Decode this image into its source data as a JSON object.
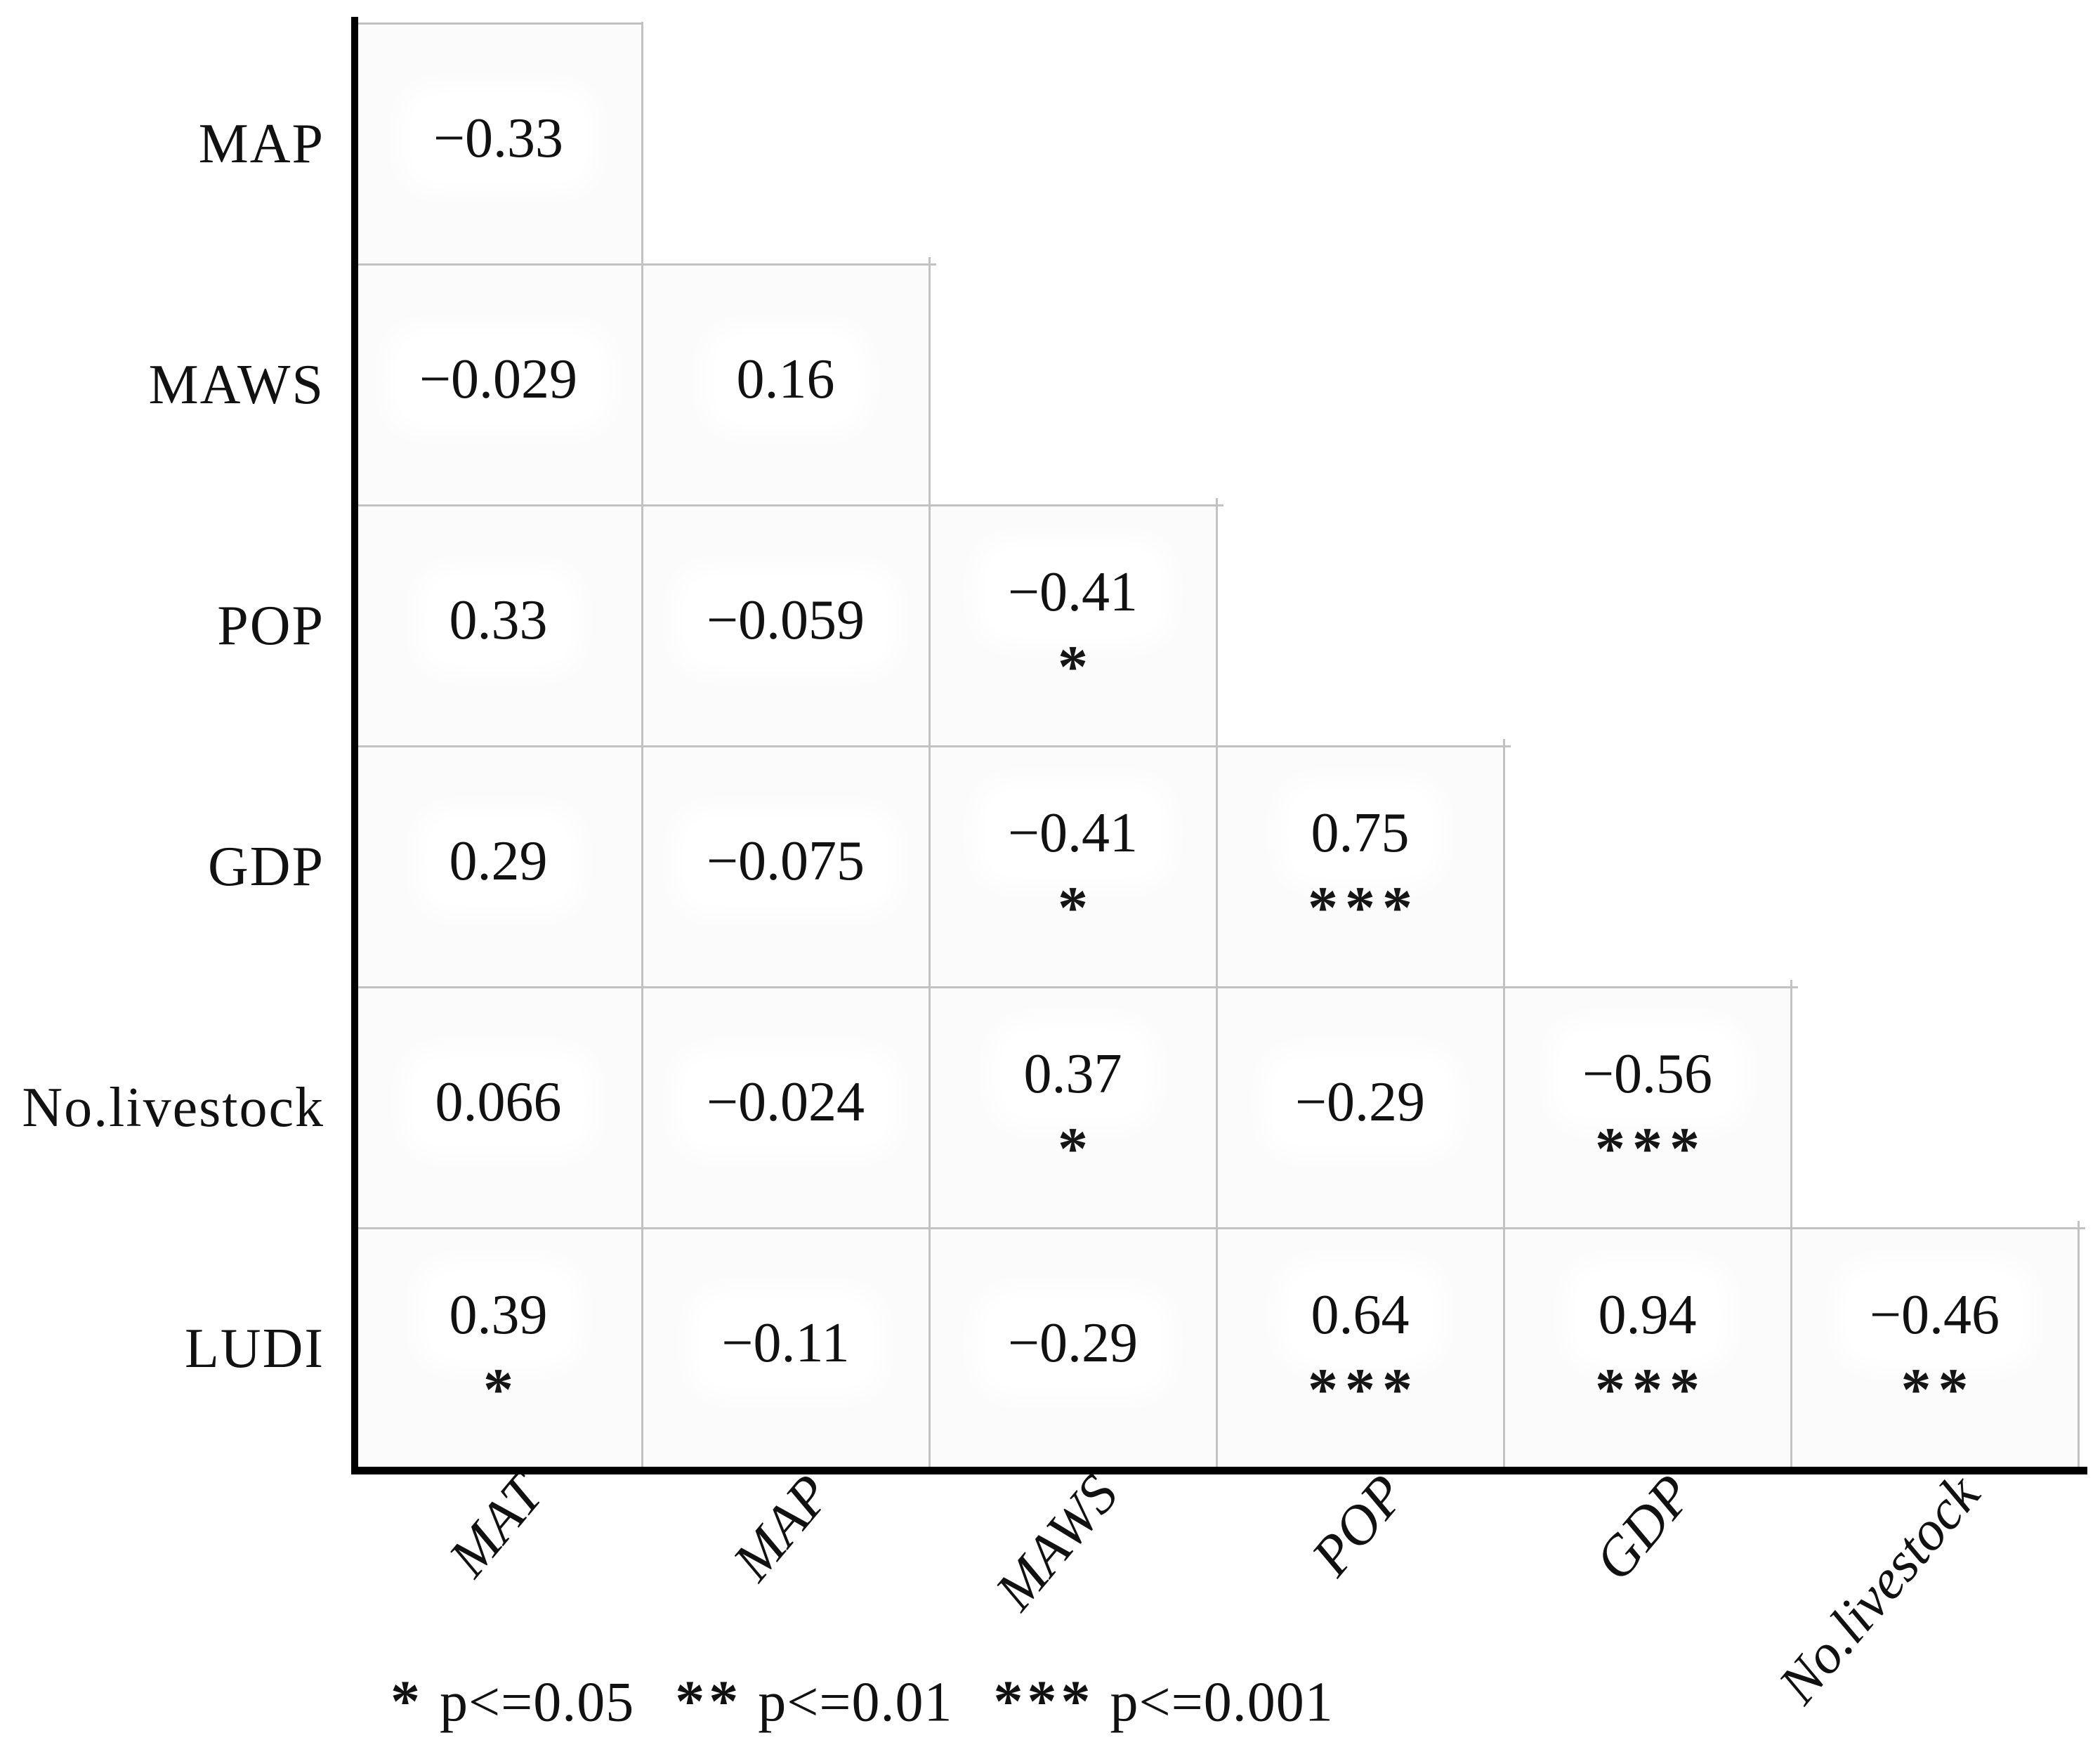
{
  "chart_data": {
    "type": "heatmap",
    "subtype": "lower-triangle correlation matrix",
    "title": "",
    "rows": [
      "MAP",
      "MAWS",
      "POP",
      "GDP",
      "No.livestock",
      "LUDI"
    ],
    "columns": [
      "MAT",
      "MAP",
      "MAWS",
      "POP",
      "GDP",
      "No.livestock"
    ],
    "matrix": [
      {
        "row": "MAP",
        "cells": [
          {
            "col": "MAT",
            "r": -0.33,
            "sig": ""
          }
        ]
      },
      {
        "row": "MAWS",
        "cells": [
          {
            "col": "MAT",
            "r": -0.029,
            "sig": ""
          },
          {
            "col": "MAP",
            "r": 0.16,
            "sig": ""
          }
        ]
      },
      {
        "row": "POP",
        "cells": [
          {
            "col": "MAT",
            "r": 0.33,
            "sig": ""
          },
          {
            "col": "MAP",
            "r": -0.059,
            "sig": ""
          },
          {
            "col": "MAWS",
            "r": -0.41,
            "sig": "*"
          }
        ]
      },
      {
        "row": "GDP",
        "cells": [
          {
            "col": "MAT",
            "r": 0.29,
            "sig": ""
          },
          {
            "col": "MAP",
            "r": -0.075,
            "sig": ""
          },
          {
            "col": "MAWS",
            "r": -0.41,
            "sig": "*"
          },
          {
            "col": "POP",
            "r": 0.75,
            "sig": "***"
          }
        ]
      },
      {
        "row": "No.livestock",
        "cells": [
          {
            "col": "MAT",
            "r": 0.066,
            "sig": ""
          },
          {
            "col": "MAP",
            "r": -0.024,
            "sig": ""
          },
          {
            "col": "MAWS",
            "r": 0.37,
            "sig": "*"
          },
          {
            "col": "POP",
            "r": -0.29,
            "sig": ""
          },
          {
            "col": "GDP",
            "r": -0.56,
            "sig": "***"
          }
        ]
      },
      {
        "row": "LUDI",
        "cells": [
          {
            "col": "MAT",
            "r": 0.39,
            "sig": "*"
          },
          {
            "col": "MAP",
            "r": -0.11,
            "sig": ""
          },
          {
            "col": "MAWS",
            "r": -0.29,
            "sig": ""
          },
          {
            "col": "POP",
            "r": 0.64,
            "sig": "***"
          },
          {
            "col": "GDP",
            "r": 0.94,
            "sig": "***"
          },
          {
            "col": "No.livestock",
            "r": -0.46,
            "sig": "**"
          }
        ]
      }
    ],
    "legend_items": [
      {
        "symbol": "*",
        "label": "p<=0.05"
      },
      {
        "symbol": "**",
        "label": "p<=0.01"
      },
      {
        "symbol": "***",
        "label": "p<=0.001"
      }
    ],
    "layout_hints": {
      "grid": "lower-triangle staircase",
      "x_tick_rotation_deg": 50,
      "legend_position": "bottom-left"
    }
  },
  "colors": {
    "text": "#111111",
    "gridline": "#c2c2c2",
    "axis": "#000000",
    "cell_background": "#fbfbfb",
    "page_background": "#ffffff"
  }
}
